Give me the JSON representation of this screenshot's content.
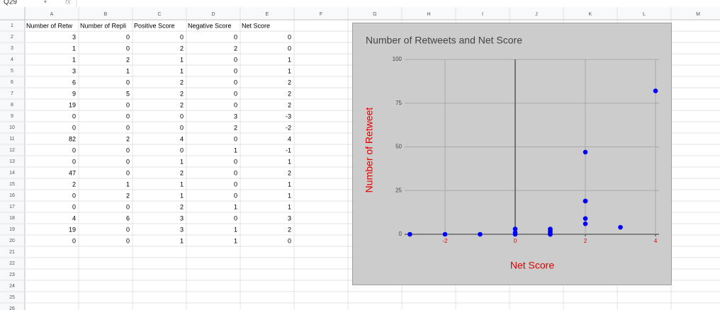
{
  "sheet": {
    "name_box": "Q29",
    "formula_icon": "fx",
    "columns": [
      "A",
      "B",
      "C",
      "D",
      "E",
      "F",
      "G",
      "H",
      "I",
      "J",
      "K",
      "L",
      "M"
    ],
    "row_numbers": [
      1,
      2,
      3,
      4,
      5,
      6,
      7,
      8,
      9,
      10,
      11,
      12,
      13,
      14,
      15,
      16,
      17,
      18,
      19,
      20,
      21,
      22,
      23,
      24,
      25,
      26
    ],
    "rows": [
      [
        "Number of Retw",
        "Number of Repli",
        "Positive Score",
        "Negative Score",
        "Net Score"
      ],
      [
        3,
        0,
        0,
        0,
        0
      ],
      [
        1,
        0,
        2,
        2,
        0
      ],
      [
        1,
        2,
        1,
        0,
        1
      ],
      [
        3,
        1,
        1,
        0,
        1
      ],
      [
        6,
        0,
        2,
        0,
        2
      ],
      [
        9,
        5,
        2,
        0,
        2
      ],
      [
        19,
        0,
        2,
        0,
        2
      ],
      [
        0,
        0,
        0,
        3,
        -3
      ],
      [
        0,
        0,
        0,
        2,
        -2
      ],
      [
        82,
        2,
        4,
        0,
        4
      ],
      [
        0,
        0,
        0,
        1,
        -1
      ],
      [
        0,
        0,
        1,
        0,
        1
      ],
      [
        47,
        0,
        2,
        0,
        2
      ],
      [
        2,
        1,
        1,
        0,
        1
      ],
      [
        0,
        2,
        1,
        0,
        1
      ],
      [
        0,
        0,
        2,
        1,
        1
      ],
      [
        4,
        6,
        3,
        0,
        3
      ],
      [
        19,
        0,
        3,
        1,
        2
      ],
      [
        0,
        0,
        1,
        1,
        0
      ]
    ]
  },
  "chart_data": {
    "type": "scatter",
    "title": "Number of Retweets and Net Score",
    "x_label": "Net Score",
    "y_label": "Number of Retweet",
    "x": [
      0,
      0,
      1,
      1,
      2,
      2,
      2,
      -3,
      -2,
      4,
      -1,
      1,
      2,
      1,
      1,
      1,
      3,
      2,
      0
    ],
    "values": [
      3,
      1,
      1,
      3,
      6,
      9,
      19,
      0,
      0,
      82,
      0,
      0,
      47,
      2,
      0,
      0,
      4,
      19,
      0
    ],
    "color": "#0000ff",
    "xlim": [
      -3.15,
      4.1
    ],
    "ylim": [
      0,
      100
    ],
    "xticks": [
      -2,
      0,
      2,
      4
    ],
    "yticks": [
      0,
      25,
      50,
      75,
      100
    ],
    "grid": true
  }
}
